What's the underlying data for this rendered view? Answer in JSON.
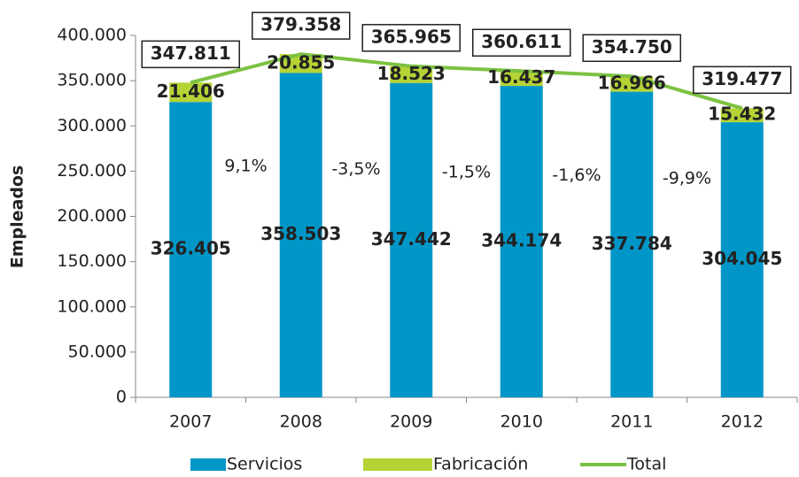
{
  "chart_data": {
    "type": "bar",
    "stacked": true,
    "y_label": "Empleados",
    "categories": [
      "2007",
      "2008",
      "2009",
      "2010",
      "2011",
      "2012"
    ],
    "series": [
      {
        "name": "Servicios",
        "type": "bar",
        "color": "#0097c8",
        "values": [
          326405,
          358503,
          347442,
          344174,
          337784,
          304045
        ],
        "value_labels": [
          "326.405",
          "358.503",
          "347.442",
          "344.174",
          "337.784",
          "304.045"
        ]
      },
      {
        "name": "Fabricación",
        "type": "bar",
        "color": "#b5d334",
        "values": [
          21406,
          20855,
          18523,
          16437,
          16966,
          15432
        ],
        "value_labels": [
          "21.406",
          "20.855",
          "18.523",
          "16.437",
          "16.966",
          "15.432"
        ]
      },
      {
        "name": "Total",
        "type": "line",
        "color": "#7cc242",
        "values": [
          347811,
          379358,
          365965,
          360611,
          354750,
          319477
        ],
        "value_labels": [
          "347.811",
          "379.358",
          "365.965",
          "360.611",
          "354.750",
          "319.477"
        ]
      }
    ],
    "annotations": [
      "9,1%",
      "-3,5%",
      "-1,5%",
      "-1,6%",
      "-9,9%"
    ],
    "ylim": [
      0,
      400000
    ],
    "yticks": [
      0,
      {
        "value": 50000,
        "label": "50.000"
      },
      {
        "value": 100000,
        "label": "100.000"
      },
      {
        "value": 150000,
        "label": "150.000"
      },
      {
        "value": 200000,
        "label": "200.000"
      },
      {
        "value": 250000,
        "label": "250.000"
      },
      {
        "value": 300000,
        "label": "300.000"
      },
      {
        "value": 350000,
        "label": "350.000"
      },
      {
        "value": 400000,
        "label": "400.000"
      }
    ],
    "legend": "bottom"
  }
}
